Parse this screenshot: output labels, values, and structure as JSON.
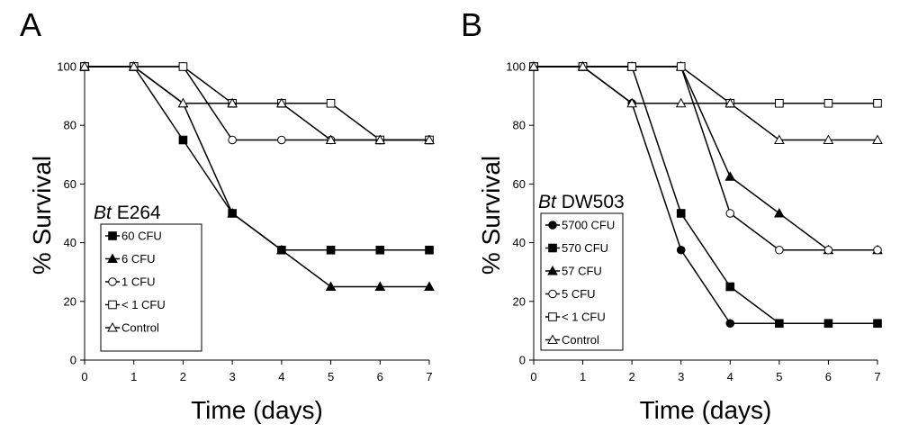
{
  "chart_data": [
    {
      "type": "line",
      "panel_label": "A",
      "strain": {
        "genus": "Bt",
        "name": "E264"
      },
      "xlabel": "Time (days)",
      "ylabel": "% Survival",
      "xlim": [
        0,
        7
      ],
      "ylim": [
        0,
        100
      ],
      "xticks": [
        "0",
        "1",
        "2",
        "3",
        "4",
        "5",
        "6",
        "7"
      ],
      "yticks": [
        "0",
        "20",
        "40",
        "60",
        "80",
        "100"
      ],
      "x": [
        0,
        1,
        2,
        3,
        4,
        5,
        6,
        7
      ],
      "series": [
        {
          "name": "60 CFU",
          "marker": "square-filled",
          "values": [
            100,
            100,
            75,
            50,
            37.5,
            37.5,
            37.5,
            37.5
          ]
        },
        {
          "name": "6 CFU",
          "marker": "triangle-filled",
          "values": [
            100,
            100,
            87.5,
            50,
            37.5,
            25,
            25,
            25
          ]
        },
        {
          "name": "1 CFU",
          "marker": "circle-open",
          "values": [
            100,
            100,
            100,
            75,
            75,
            75,
            75,
            75
          ]
        },
        {
          "name": "< 1  CFU",
          "marker": "square-open",
          "values": [
            100,
            100,
            100,
            87.5,
            87.5,
            87.5,
            75,
            75
          ]
        },
        {
          "name": "Control",
          "marker": "triangle-open",
          "values": [
            100,
            100,
            87.5,
            87.5,
            87.5,
            75,
            75,
            75
          ]
        }
      ]
    },
    {
      "type": "line",
      "panel_label": "B",
      "strain": {
        "genus": "Bt",
        "name": "DW503"
      },
      "xlabel": "Time (days)",
      "ylabel": "% Survival",
      "xlim": [
        0,
        7
      ],
      "ylim": [
        0,
        100
      ],
      "xticks": [
        "0",
        "1",
        "2",
        "3",
        "4",
        "5",
        "6",
        "7"
      ],
      "yticks": [
        "0",
        "20",
        "40",
        "60",
        "80",
        "100"
      ],
      "x": [
        0,
        1,
        2,
        3,
        4,
        5,
        6,
        7
      ],
      "series": [
        {
          "name": "5700 CFU",
          "marker": "circle-filled",
          "values": [
            100,
            100,
            87.5,
            37.5,
            12.5,
            12.5,
            12.5,
            12.5
          ]
        },
        {
          "name": "570 CFU",
          "marker": "square-filled",
          "values": [
            100,
            100,
            100,
            50,
            25,
            12.5,
            12.5,
            12.5
          ]
        },
        {
          "name": "57 CFU",
          "marker": "triangle-filled",
          "values": [
            100,
            100,
            100,
            100,
            62.5,
            50,
            37.5,
            37.5
          ]
        },
        {
          "name": "5 CFU",
          "marker": "circle-open",
          "values": [
            100,
            100,
            100,
            100,
            50,
            37.5,
            37.5,
            37.5
          ]
        },
        {
          "name": "< 1 CFU",
          "marker": "square-open",
          "values": [
            100,
            100,
            100,
            100,
            87.5,
            87.5,
            87.5,
            87.5
          ]
        },
        {
          "name": "Control",
          "marker": "triangle-open",
          "values": [
            100,
            100,
            87.5,
            87.5,
            87.5,
            75,
            75,
            75
          ]
        }
      ]
    }
  ]
}
